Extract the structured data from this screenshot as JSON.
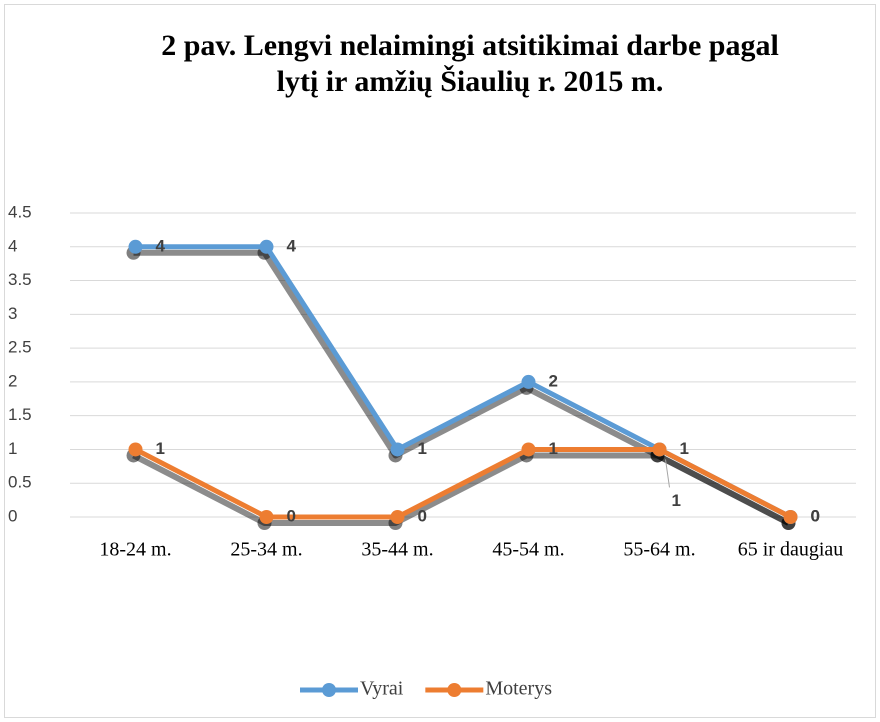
{
  "chart_data": {
    "type": "line",
    "title": "2 pav. Lengvi nelaimingi atsitikimai darbe pagal lytį ir amžių Šiaulių r. 2015 m.",
    "categories": [
      "18-24 m.",
      "25-34 m.",
      "35-44 m.",
      "45-54 m.",
      "55-64 m.",
      "65 ir daugiau"
    ],
    "series": [
      {
        "name": "Vyrai",
        "color": "#5b9bd5",
        "values": [
          4,
          4,
          1,
          2,
          1,
          0
        ]
      },
      {
        "name": "Moterys",
        "color": "#ed7d31",
        "values": [
          1,
          0,
          0,
          1,
          1,
          0
        ]
      }
    ],
    "ylim": [
      0,
      4.5
    ],
    "yticks": [
      0,
      0.5,
      1,
      1.5,
      2,
      2.5,
      3,
      3.5,
      4,
      4.5
    ],
    "grid": true,
    "legend": "bottom",
    "data_labels": true
  }
}
